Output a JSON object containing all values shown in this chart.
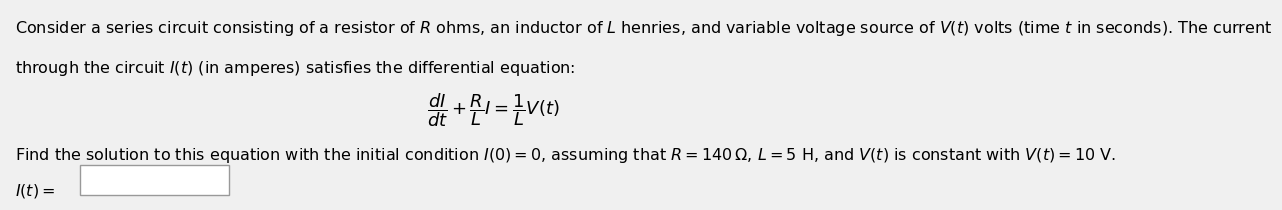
{
  "bg_color": "#f0f0f0",
  "text_color": "#000000",
  "line1": "Consider a series circuit consisting of a resistor of $R$ ohms, an inductor of $L$ henries, and variable voltage source of $V(t)$ volts (time $t$ in seconds). The current",
  "line2": "through the circuit $I(t)$ (in amperes) satisfies the differential equation:",
  "equation": "$\\dfrac{dI}{dt} + \\dfrac{R}{L}I = \\dfrac{1}{L}V(t)$",
  "line3": "Find the solution to this equation with the initial condition $I(0) = 0$, assuming that $R = 140\\,\\Omega,\\, L = 5$ H, and $V(t)$ is constant with $V(t) = 10$ V.",
  "label": "$I(t) =$",
  "font_size_main": 11.5,
  "font_size_eq": 13
}
